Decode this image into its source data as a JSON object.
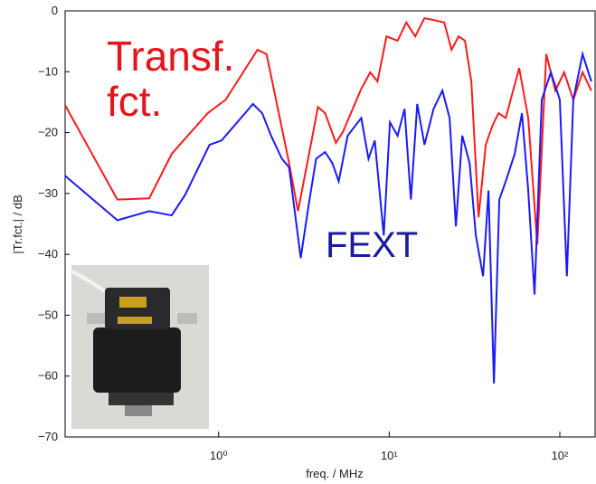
{
  "chart_data": {
    "type": "line",
    "xlabel": "freq. / MHz",
    "ylabel": "|Tr.fct.| / dB",
    "xscale": "log",
    "xlim": [
      0.126,
      161
    ],
    "ylim": [
      -70,
      0
    ],
    "xticks": [
      {
        "value": 1,
        "label": "10⁰"
      },
      {
        "value": 10,
        "label": "10¹"
      },
      {
        "value": 100,
        "label": "10²"
      }
    ],
    "yticks": [
      0,
      {
        "value": -10,
        "label": "−10"
      },
      {
        "value": -20,
        "label": "−20"
      },
      {
        "value": -30,
        "label": "−30"
      },
      {
        "value": -40,
        "label": "−40"
      },
      {
        "value": -50,
        "label": "−50"
      },
      {
        "value": -60,
        "label": "−60"
      },
      {
        "value": -70,
        "label": "−70"
      }
    ],
    "annotations": [
      {
        "text": "Transf.",
        "color": "#e8141c"
      },
      {
        "text": "fct.",
        "color": "#e8141c"
      },
      {
        "text": "FEXT",
        "color": "#1a1aa0"
      }
    ],
    "series": [
      {
        "color": "#ff1a1a",
        "x": [
          0.126,
          0.255,
          0.392,
          0.531,
          0.864,
          1.1,
          1.69,
          1.91,
          2.59,
          2.92,
          3.51,
          3.82,
          4.21,
          4.87,
          5.37,
          6.86,
          7.74,
          8.54,
          9.64,
          11.2,
          12.6,
          14.2,
          16.1,
          18.2,
          21.0,
          23.2,
          25.5,
          27.8,
          30.3,
          33.4,
          36.8,
          40.1,
          43.7,
          48.2,
          57.8,
          65.3,
          73.8,
          83.3,
          94.2,
          106,
          120,
          136,
          153
        ],
        "values": [
          -15.5,
          -31.0,
          -30.8,
          -23.5,
          -16.8,
          -14.6,
          -6.4,
          -7.1,
          -25.0,
          -32.9,
          -21.3,
          -15.8,
          -16.8,
          -21.7,
          -19.8,
          -12.8,
          -10.1,
          -11.6,
          -4.2,
          -4.9,
          -1.9,
          -4.2,
          -1.2,
          -1.5,
          -1.9,
          -6.4,
          -4.2,
          -4.9,
          -11.6,
          -33.9,
          -22.0,
          -19.0,
          -16.8,
          -17.6,
          -9.4,
          -17.6,
          -38.4,
          -7.1,
          -13.1,
          -10.1,
          -14.6,
          -10.1,
          -13.1
        ]
      },
      {
        "color": "#1a1aff",
        "x": [
          0.126,
          0.255,
          0.392,
          0.531,
          0.637,
          0.885,
          1.04,
          1.59,
          1.8,
          2.03,
          2.35,
          2.59,
          3.03,
          3.38,
          3.73,
          4.21,
          4.64,
          5.06,
          5.71,
          6.86,
          7.56,
          8.23,
          9.29,
          10.1,
          11.2,
          12.3,
          13.4,
          14.6,
          16.1,
          18.2,
          20.5,
          22.6,
          24.6,
          26.8,
          29.6,
          32.2,
          35.5,
          38.2,
          41.1,
          44.2,
          48.2,
          54.4,
          60.0,
          65.3,
          71.1,
          78.4,
          88.6,
          100,
          110,
          120,
          136,
          153
        ],
        "values": [
          -27.1,
          -34.4,
          -32.9,
          -33.6,
          -30.2,
          -22.0,
          -21.3,
          -15.3,
          -16.8,
          -20.5,
          -24.3,
          -25.7,
          -40.6,
          -31.7,
          -24.3,
          -23.2,
          -25.0,
          -28.0,
          -20.5,
          -17.6,
          -24.3,
          -21.3,
          -36.9,
          -18.3,
          -20.5,
          -16.1,
          -31.0,
          -15.3,
          -22.0,
          -16.1,
          -13.1,
          -17.6,
          -35.4,
          -20.5,
          -25.0,
          -36.9,
          -43.6,
          -29.5,
          -61.2,
          -31.0,
          -28.0,
          -23.5,
          -16.8,
          -29.5,
          -46.6,
          -14.6,
          -10.1,
          -14.6,
          -43.6,
          -14.6,
          -7.1,
          -11.6
        ]
      }
    ]
  }
}
